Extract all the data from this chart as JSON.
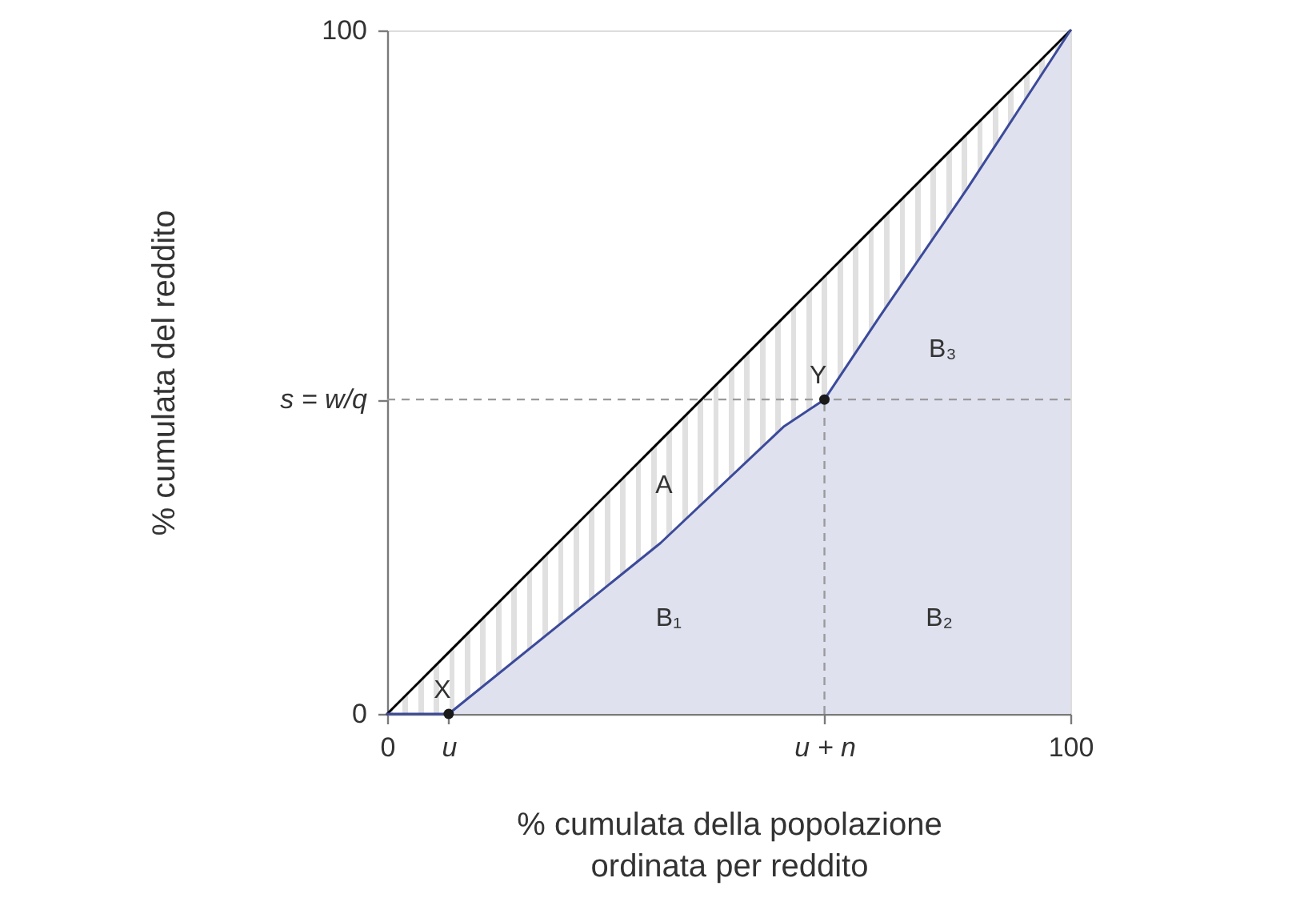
{
  "chart_data": {
    "type": "line",
    "xlabel": "% cumulata della popolazione\nordinata per reddito",
    "ylabel": "% cumulata del reddito",
    "xlim": [
      0,
      100
    ],
    "ylim": [
      0,
      100
    ],
    "xticks": [
      0,
      {
        "value": 9,
        "label": "u"
      },
      {
        "value": 64,
        "label": "u + n"
      },
      100
    ],
    "yticks": [
      0,
      {
        "value": 46,
        "label": "s = w/q"
      },
      100
    ],
    "series": [
      {
        "type": "area",
        "color": "#dfe1ef",
        "x": [
          9,
          40,
          58,
          64,
          72,
          85,
          100
        ],
        "values": [
          0,
          25,
          42,
          46,
          58,
          77,
          100
        ]
      },
      {
        "type": "line",
        "color": "#000000",
        "x": [
          0,
          9,
          40,
          58,
          64,
          72,
          85,
          100
        ],
        "values": [
          0,
          9,
          40,
          58,
          64,
          72,
          85,
          100
        ],
        "lower": [
          0,
          0,
          25,
          42,
          46,
          58,
          77,
          100
        ],
        "upper": [
          0,
          9,
          40,
          58,
          64,
          72,
          85,
          100
        ]
      },
      {
        "type": "line",
        "color": "#3c4a9a",
        "x": [
          0,
          9,
          40,
          58,
          64,
          72,
          85,
          100
        ],
        "values": [
          0,
          0,
          25,
          42,
          46,
          58,
          77,
          100
        ]
      },
      {
        "type": "scatter",
        "color": "#1a1a1a",
        "marker": "circle",
        "x": [
          9,
          64
        ],
        "values": [
          0,
          46
        ]
      }
    ],
    "ref_lines": [
      {
        "axis": "y",
        "value": 46,
        "color": "#9a9a9a",
        "line_style": "dashed"
      },
      {
        "axis": "x",
        "value": 64,
        "color": "#9a9a9a",
        "line_style": "dashed"
      }
    ],
    "annotations": [
      {
        "text": "X",
        "x": 9,
        "y": 0
      },
      {
        "text": "Y",
        "x": 64,
        "y": 46
      },
      "A",
      "B₁",
      "B₂",
      "B₃"
    ]
  }
}
